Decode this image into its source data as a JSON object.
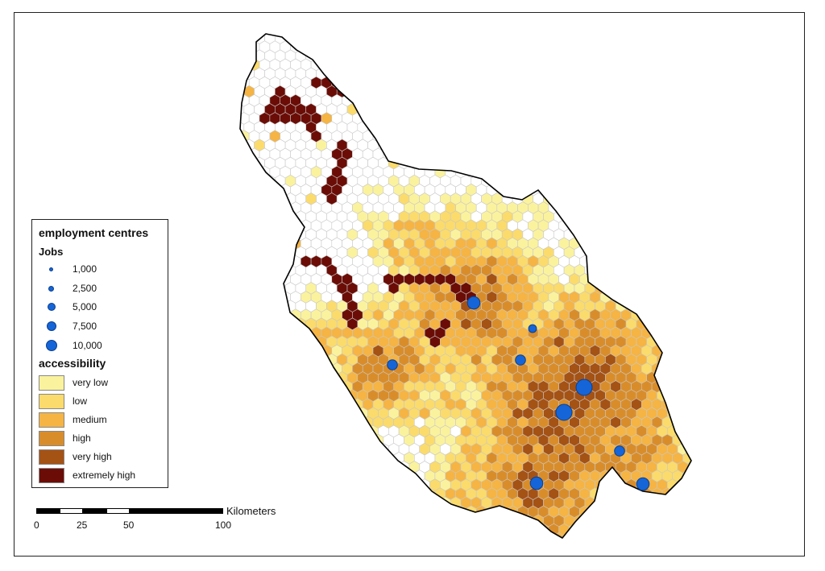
{
  "legend": {
    "title": "employment centres",
    "jobs_heading": "Jobs",
    "jobs": [
      {
        "label": "1,000",
        "value": 1000
      },
      {
        "label": "2,500",
        "value": 2500
      },
      {
        "label": "5,000",
        "value": 5000
      },
      {
        "label": "7,500",
        "value": 7500
      },
      {
        "label": "10,000",
        "value": 10000
      }
    ],
    "accessibility_heading": "accessibility",
    "classes": [
      {
        "label": "very low",
        "color": "#fbf29e"
      },
      {
        "label": "low",
        "color": "#fbdb6b"
      },
      {
        "label": "medium",
        "color": "#f5b443"
      },
      {
        "label": "high",
        "color": "#d98d2a"
      },
      {
        "label": "very high",
        "color": "#a55215"
      },
      {
        "label": "extremely high",
        "color": "#6b0d06"
      }
    ]
  },
  "scalebar": {
    "unit": "Kilometers",
    "ticks": [
      "0",
      "25",
      "50",
      "100"
    ]
  },
  "colors": {
    "hex_empty": "#ffffff",
    "hex_stroke": "#c8c8c8",
    "outline": "#000000",
    "centre_fill": "#1565d8"
  },
  "icons": {
    "employment_centre": "circle-icon"
  }
}
